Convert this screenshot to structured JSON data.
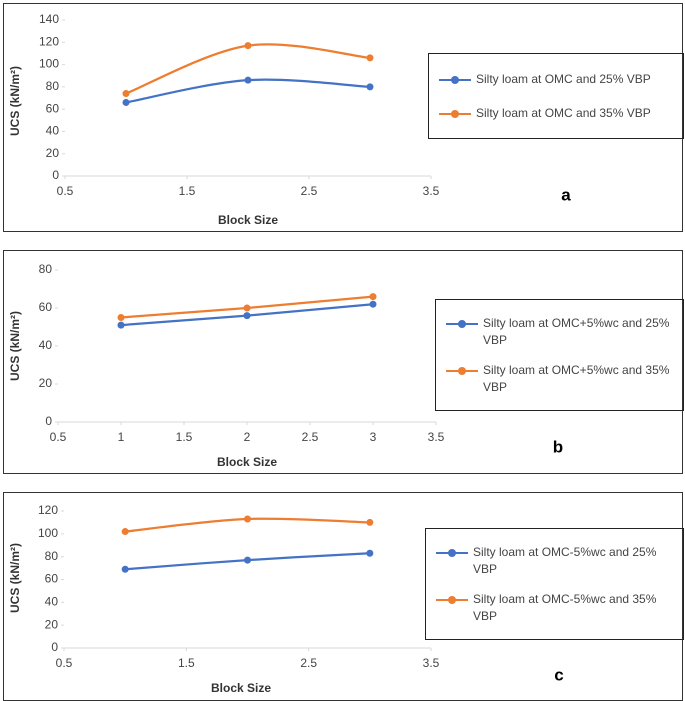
{
  "chart_data": [
    {
      "type": "line",
      "smooth": true,
      "panel_label": "a",
      "xlabel": "Block Size",
      "ylabel": "UCS (kN/m²)",
      "x": [
        1,
        2,
        3
      ],
      "xlim": [
        0.5,
        3.5
      ],
      "xticks": [
        0.5,
        1.5,
        2.5,
        3.5
      ],
      "ylim": [
        0,
        140
      ],
      "yticks": [
        0,
        20,
        40,
        60,
        80,
        100,
        120,
        140
      ],
      "series": [
        {
          "name": "Silty loam at OMC and 25% VBP",
          "color": "#4472c4",
          "values": [
            66,
            86,
            80
          ]
        },
        {
          "name": "Silty loam at OMC and 35% VBP",
          "color": "#ed7d31",
          "values": [
            74,
            117,
            106
          ]
        }
      ]
    },
    {
      "type": "line",
      "smooth": false,
      "panel_label": "b",
      "xlabel": "Block Size",
      "ylabel": "UCS (kN/m²)",
      "x": [
        1,
        2,
        3
      ],
      "xlim": [
        0.5,
        3.5
      ],
      "xticks": [
        0.5,
        1,
        1.5,
        2,
        2.5,
        3,
        3.5
      ],
      "ylim": [
        0,
        80
      ],
      "yticks": [
        0,
        20,
        40,
        60,
        80
      ],
      "series": [
        {
          "name": "Silty loam at OMC+5%wc and 25% VBP",
          "color": "#4472c4",
          "values": [
            51,
            56,
            62
          ]
        },
        {
          "name": "Silty loam at OMC+5%wc and 35% VBP",
          "color": "#ed7d31",
          "values": [
            55,
            60,
            66
          ]
        }
      ]
    },
    {
      "type": "line",
      "smooth": true,
      "panel_label": "c",
      "xlabel": "Block Size",
      "ylabel": "UCS (kN/m²)",
      "x": [
        1,
        2,
        3
      ],
      "xlim": [
        0.5,
        3.5
      ],
      "xticks": [
        0.5,
        1.5,
        2.5,
        3.5
      ],
      "ylim": [
        0,
        120
      ],
      "yticks": [
        0,
        20,
        40,
        60,
        80,
        100,
        120
      ],
      "series": [
        {
          "name": "Silty loam at OMC-5%wc and 25% VBP",
          "color": "#4472c4",
          "values": [
            69,
            77,
            83
          ]
        },
        {
          "name": "Silty loam at OMC-5%wc and 35% VBP",
          "color": "#ed7d31",
          "values": [
            102,
            113,
            110
          ]
        }
      ]
    }
  ]
}
